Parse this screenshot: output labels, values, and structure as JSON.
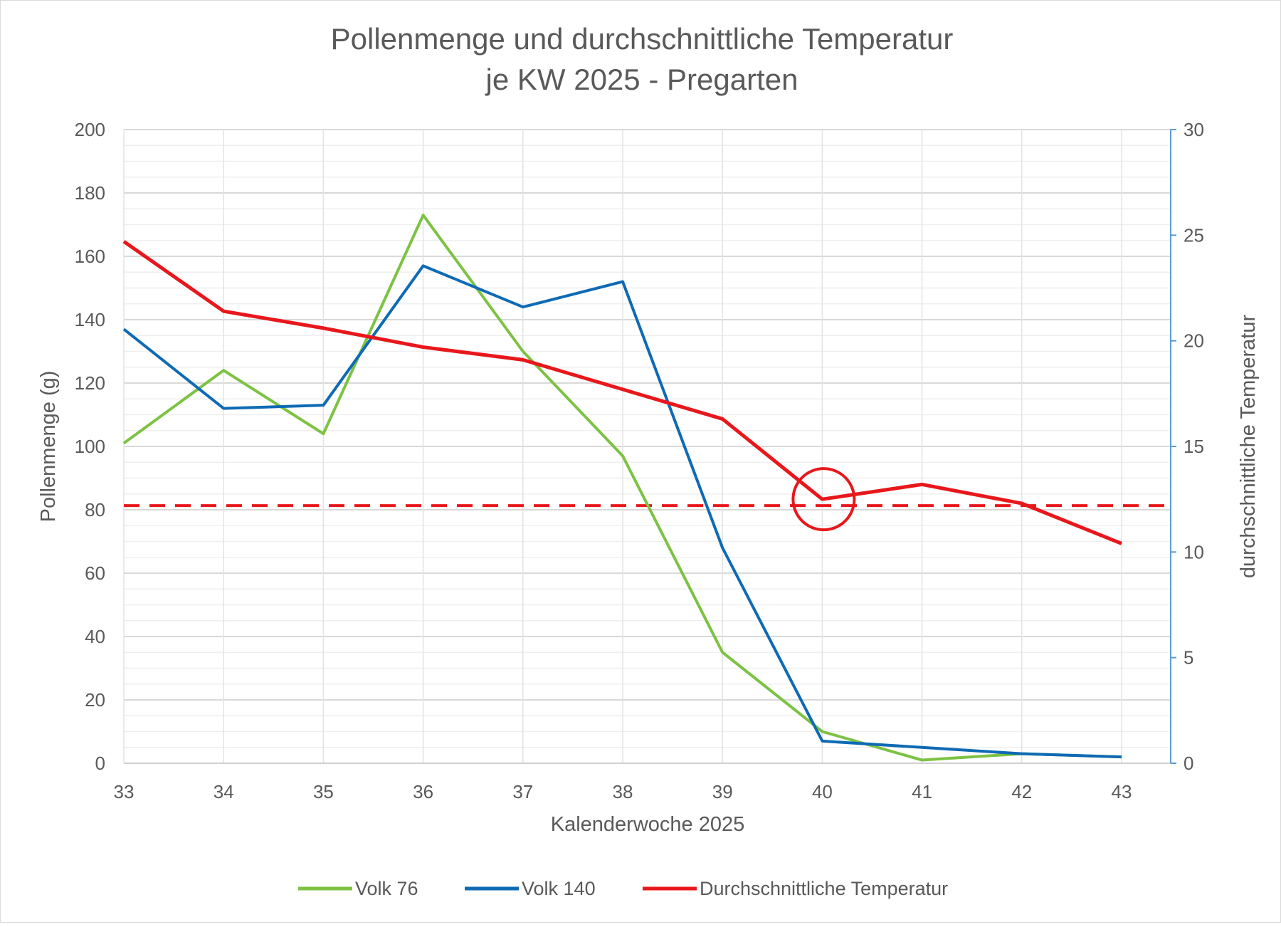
{
  "chart_data": {
    "type": "line",
    "title": [
      "Pollenmenge und durchschnittliche Temperatur",
      "je KW 2025 - Pregarten"
    ],
    "xlabel": "Kalenderwoche 2025",
    "ylabel": "Pollenmenge (g)",
    "y2label": "durchschnittliche Temperatur",
    "categories": [
      "33",
      "34",
      "35",
      "36",
      "37",
      "38",
      "39",
      "40",
      "41",
      "42",
      "43"
    ],
    "ylim": [
      0,
      200
    ],
    "yticks": [
      0,
      20,
      40,
      60,
      80,
      100,
      120,
      140,
      160,
      180,
      200
    ],
    "y2lim": [
      0,
      30
    ],
    "y2ticks": [
      0,
      5,
      10,
      15,
      20,
      25,
      30
    ],
    "grid": true,
    "legend_position": "bottom",
    "series": [
      {
        "name": "Volk 76",
        "axis": "left",
        "color": "#7dc243",
        "values": [
          101,
          124,
          104,
          173,
          130,
          97,
          35,
          10,
          1,
          3,
          2
        ]
      },
      {
        "name": "Volk 140",
        "axis": "left",
        "color": "#0e6ab4",
        "values": [
          137,
          112,
          113,
          157,
          144,
          152,
          68,
          7,
          5,
          3,
          2
        ]
      },
      {
        "name": "Durchschnittliche Temperatur",
        "axis": "right",
        "color": "#e8171b",
        "values": [
          24.7,
          21.4,
          20.6,
          19.7,
          19.1,
          17.7,
          16.3,
          12.5,
          13.2,
          12.3,
          10.4
        ]
      }
    ],
    "annotations": [
      {
        "type": "dashed-hline",
        "axis": "right",
        "value": 12.2,
        "color": "#e8171b"
      },
      {
        "type": "circle",
        "axis": "right",
        "x": "40",
        "y": 12.5,
        "color": "#e8171b"
      }
    ],
    "right_axis_color": "#5b9bd5"
  }
}
